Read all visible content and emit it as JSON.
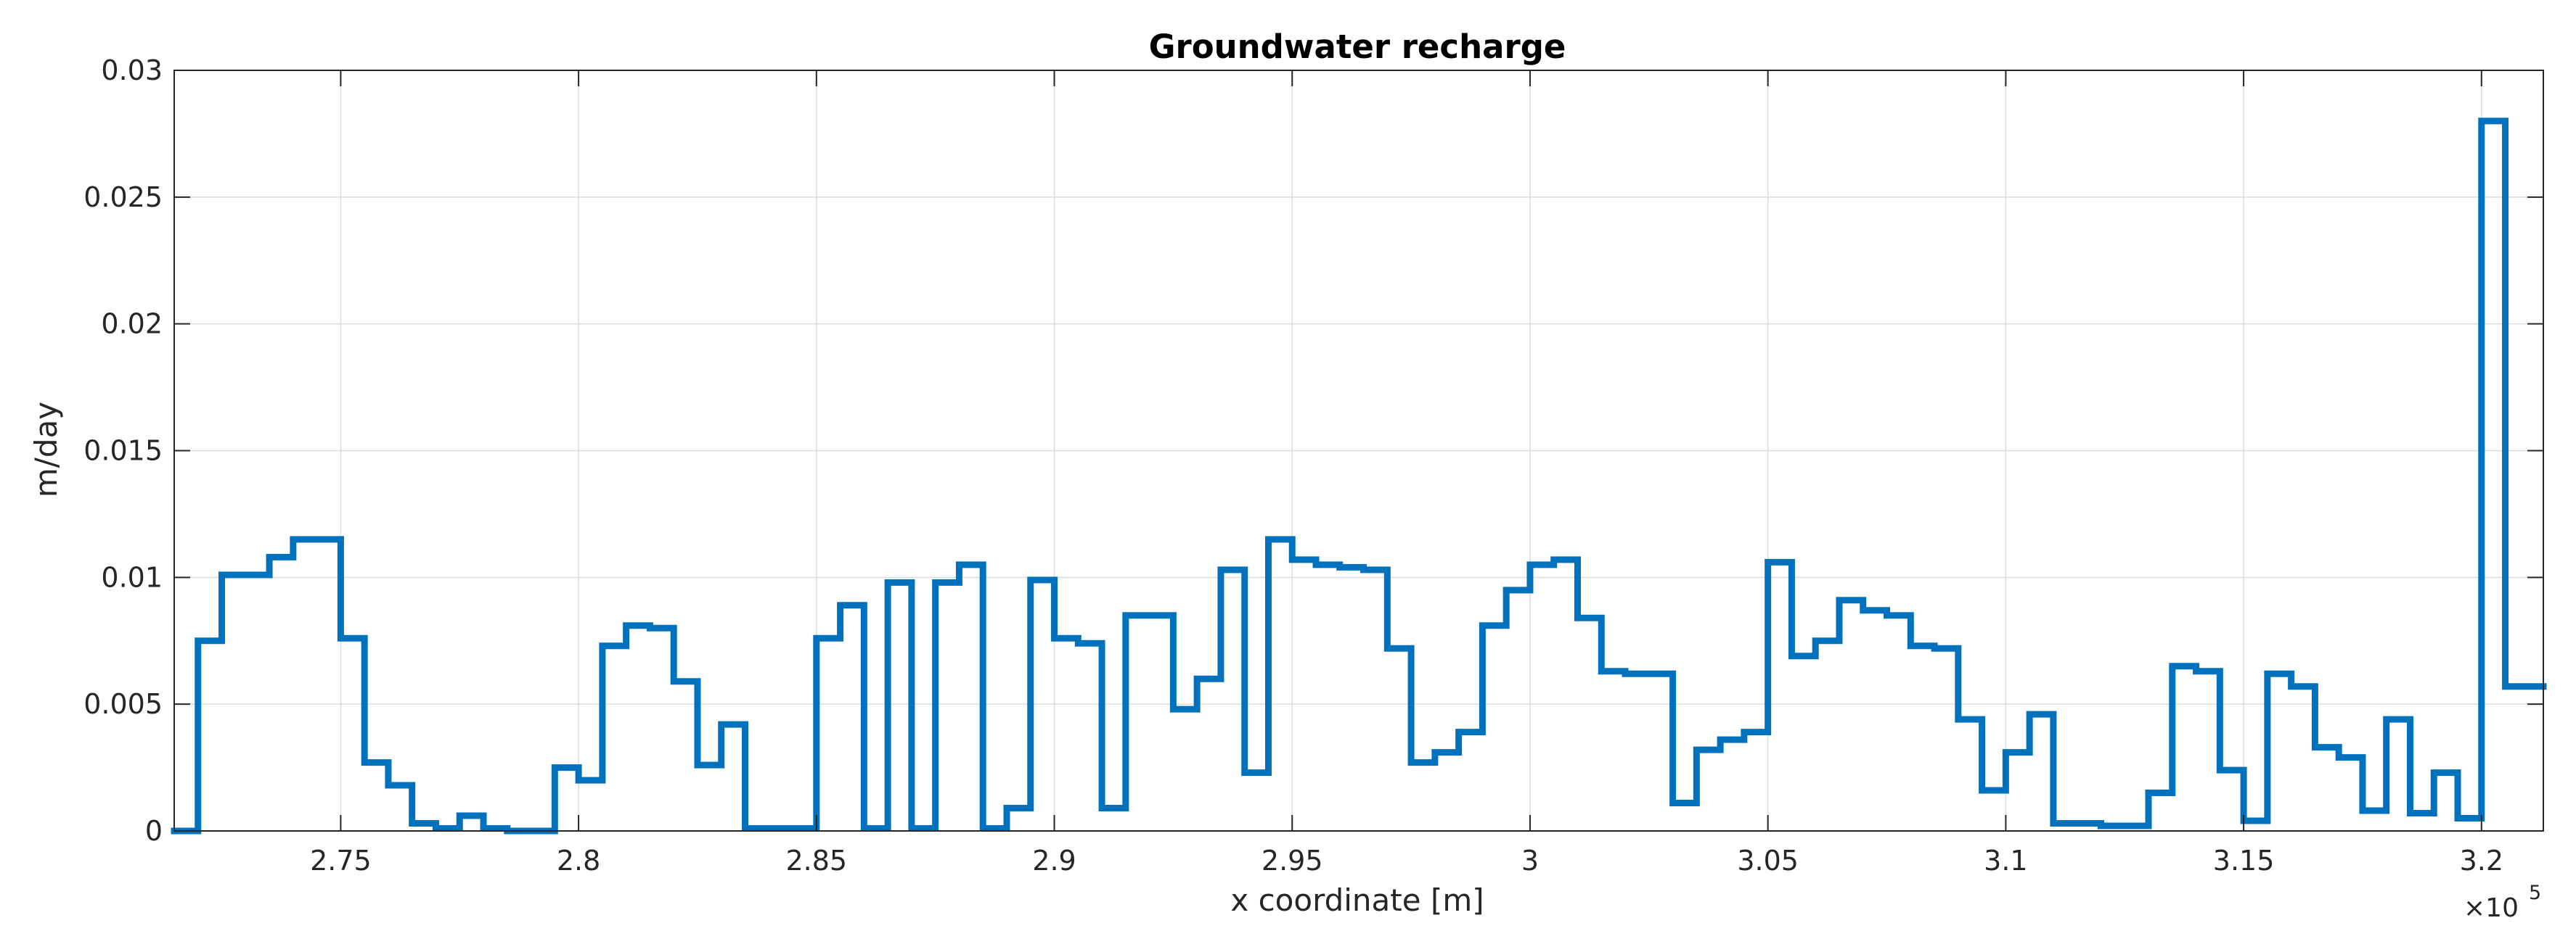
{
  "chart_data": {
    "type": "line",
    "step": true,
    "title": "Groundwater recharge",
    "xlabel": "x coordinate [m]",
    "ylabel": "m/day",
    "x_exponent_base": "×10",
    "x_exponent_power": "5",
    "xlim": [
      271500,
      321300
    ],
    "ylim": [
      0,
      0.03
    ],
    "grid": true,
    "series_color": "#0072BD",
    "xticks": [
      275000,
      280000,
      285000,
      290000,
      295000,
      300000,
      305000,
      310000,
      315000,
      320000
    ],
    "xtick_labels": [
      "2.75",
      "2.8",
      "2.85",
      "2.9",
      "2.95",
      "3",
      "3.05",
      "3.1",
      "3.15",
      "3.2"
    ],
    "yticks": [
      0,
      0.005,
      0.01,
      0.015,
      0.02,
      0.025,
      0.03
    ],
    "ytick_labels": [
      "0",
      "0.005",
      "0.01",
      "0.015",
      "0.02",
      "0.025",
      "0.03"
    ],
    "series": [
      {
        "x": [
          271500,
          272000,
          272500,
          273000,
          273500,
          274000,
          274500,
          275000,
          275500,
          276000,
          276500,
          277000,
          277500,
          278000,
          278500,
          279000,
          279500,
          280000,
          280500,
          281000,
          281500,
          282000,
          282500,
          283000,
          283500,
          284000,
          284500,
          285000,
          285500,
          286000,
          286500,
          287000,
          287500,
          288000,
          288500,
          289000,
          289500,
          290000,
          290500,
          291000,
          291500,
          292000,
          292500,
          293000,
          293500,
          294000,
          294500,
          295000,
          295500,
          296000,
          296500,
          297000,
          297500,
          298000,
          298500,
          299000,
          299500,
          300000,
          300500,
          301000,
          301500,
          302000,
          302500,
          303000,
          303500,
          304000,
          304500,
          305000,
          305500,
          306000,
          306500,
          307000,
          307500,
          308000,
          308500,
          309000,
          309500,
          310000,
          310500,
          311000,
          311500,
          312000,
          312500,
          313000,
          313500,
          314000,
          314500,
          315000,
          315500,
          316000,
          316500,
          317000,
          317500,
          318000,
          318500,
          319000,
          319500,
          320000,
          320500,
          321000
        ],
        "y": [
          0,
          0.0075,
          0.0101,
          0.0101,
          0.0108,
          0.0115,
          0.0115,
          0.0076,
          0.0027,
          0.0018,
          0.0003,
          0.0001,
          0.0006,
          0.0001,
          0,
          0,
          0.0025,
          0.002,
          0.0073,
          0.0081,
          0.008,
          0.0059,
          0.0026,
          0.0042,
          0.0001,
          0.0001,
          0.0001,
          0.0076,
          0.0089,
          0.0001,
          0.0098,
          0.0001,
          0.0098,
          0.0105,
          0.0001,
          0.0009,
          0.0099,
          0.0076,
          0.0074,
          0.0009,
          0.0085,
          0.0085,
          0.0048,
          0.006,
          0.0103,
          0.0023,
          0.0115,
          0.0107,
          0.0105,
          0.0104,
          0.0103,
          0.0072,
          0.0027,
          0.0031,
          0.0039,
          0.0081,
          0.0095,
          0.0105,
          0.0107,
          0.0084,
          0.0063,
          0.0062,
          0.0062,
          0.0011,
          0.0032,
          0.0036,
          0.0039,
          0.0106,
          0.0069,
          0.0075,
          0.0091,
          0.0087,
          0.0085,
          0.0073,
          0.0072,
          0.0044,
          0.0016,
          0.0031,
          0.0046,
          0.0003,
          0.0003,
          0.0002,
          0.0002,
          0.0015,
          0.0065,
          0.0063,
          0.0024,
          0.0004,
          0.0062,
          0.0057,
          0.0033,
          0.0029,
          0.0008,
          0.0044,
          0.0007,
          0.0023,
          0.0005,
          0.028,
          0.0057,
          0.0057
        ]
      }
    ]
  }
}
